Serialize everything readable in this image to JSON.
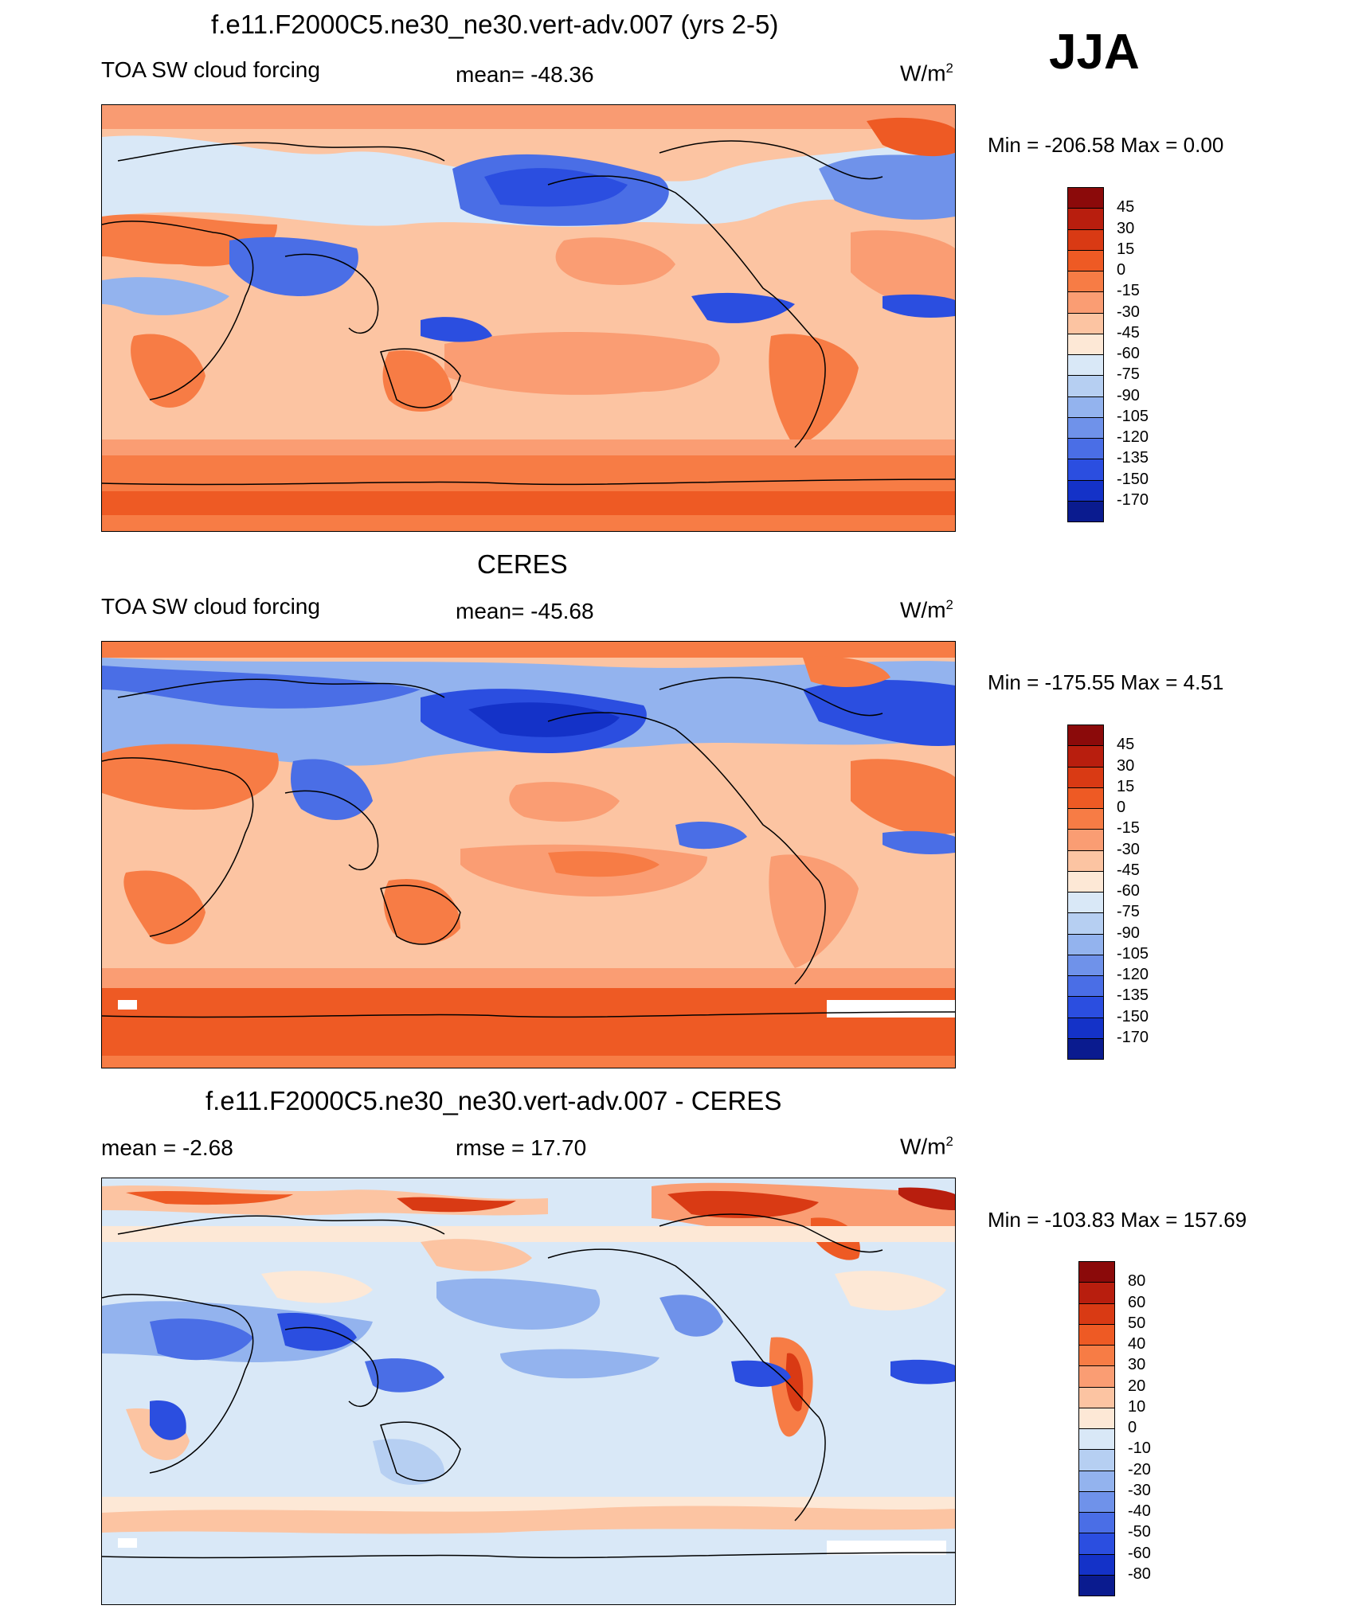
{
  "season": "JJA",
  "units_base": "W/m",
  "units_exp": "2",
  "panels": [
    {
      "title": "f.e11.F2000C5.ne30_ne30.vert-adv.007 (yrs 2-5)",
      "left_label": "TOA SW cloud forcing",
      "mid_label": "mean= -48.36",
      "minmax": "Min = -206.58 Max =    0.00"
    },
    {
      "title": "CERES",
      "left_label": "TOA SW cloud forcing",
      "mid_label": "mean= -45.68",
      "minmax": "Min = -175.55 Max =    4.51"
    },
    {
      "title": "f.e11.F2000C5.ne30_ne30.vert-adv.007 - CERES",
      "left_label": "mean =  -2.68",
      "mid_label": "rmse =  17.70",
      "minmax": "Min = -103.83 Max = 157.69"
    }
  ],
  "colorbars": {
    "field": {
      "levels": [
        "45",
        "30",
        "15",
        "0",
        "-15",
        "-30",
        "-45",
        "-60",
        "-75",
        "-90",
        "-105",
        "-120",
        "-135",
        "-150",
        "-170"
      ],
      "colors": [
        "#8b0a0a",
        "#b81e0e",
        "#d93a14",
        "#ee5a24",
        "#f77c45",
        "#fa9d73",
        "#fcc4a2",
        "#fde8d6",
        "#d9e8f7",
        "#b6cff2",
        "#93b3ee",
        "#6f92ea",
        "#4a6ee6",
        "#2b4ee0",
        "#1432c8",
        "#0a1b8f"
      ]
    },
    "diff": {
      "levels": [
        "80",
        "60",
        "50",
        "40",
        "30",
        "20",
        "10",
        "0",
        "-10",
        "-20",
        "-30",
        "-40",
        "-50",
        "-60",
        "-80"
      ],
      "colors": [
        "#8b0a0a",
        "#b81e0e",
        "#d93a14",
        "#ee5a24",
        "#f77c45",
        "#fa9d73",
        "#fcc4a2",
        "#fde8d6",
        "#d9e8f7",
        "#b6cff2",
        "#93b3ee",
        "#6f92ea",
        "#4a6ee6",
        "#2b4ee0",
        "#1432c8",
        "#0a1b8f"
      ]
    }
  }
}
